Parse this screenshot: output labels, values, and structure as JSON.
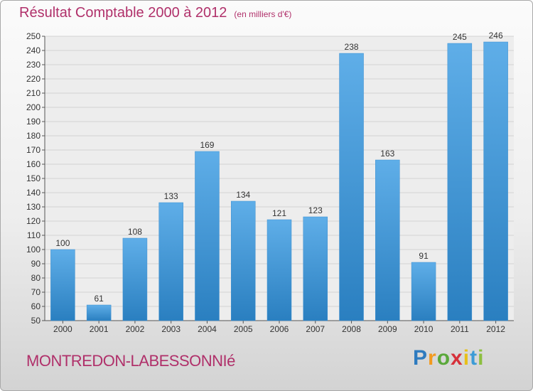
{
  "title": "Résultat Comptable 2000 à 2012",
  "subtitle": "(en milliers d'€)",
  "commune": "MONTREDON-LABESSONNIé",
  "brand": {
    "letters": [
      "P",
      "r",
      "o",
      "x",
      "i",
      "t",
      "i"
    ],
    "colors": [
      "#2e7bbf",
      "#f29a1f",
      "#5aa83a",
      "#d6303a",
      "#e7c019",
      "#3c9bd6",
      "#8cbf3f"
    ]
  },
  "colors": {
    "bar_light": "#5faee8",
    "bar_dark": "#2a7fc0",
    "title": "#b0306a"
  },
  "chart_data": {
    "type": "bar",
    "categories": [
      "2000",
      "2001",
      "2002",
      "2003",
      "2004",
      "2005",
      "2006",
      "2007",
      "2008",
      "2009",
      "2010",
      "2011",
      "2012"
    ],
    "values": [
      100,
      61,
      108,
      133,
      169,
      134,
      121,
      123,
      238,
      163,
      91,
      245,
      246
    ],
    "ylim": [
      50,
      250
    ],
    "yticks": [
      50,
      60,
      70,
      80,
      90,
      100,
      110,
      120,
      130,
      140,
      150,
      160,
      170,
      180,
      190,
      200,
      210,
      220,
      230,
      240,
      250
    ],
    "grid": true,
    "legend": "none"
  }
}
